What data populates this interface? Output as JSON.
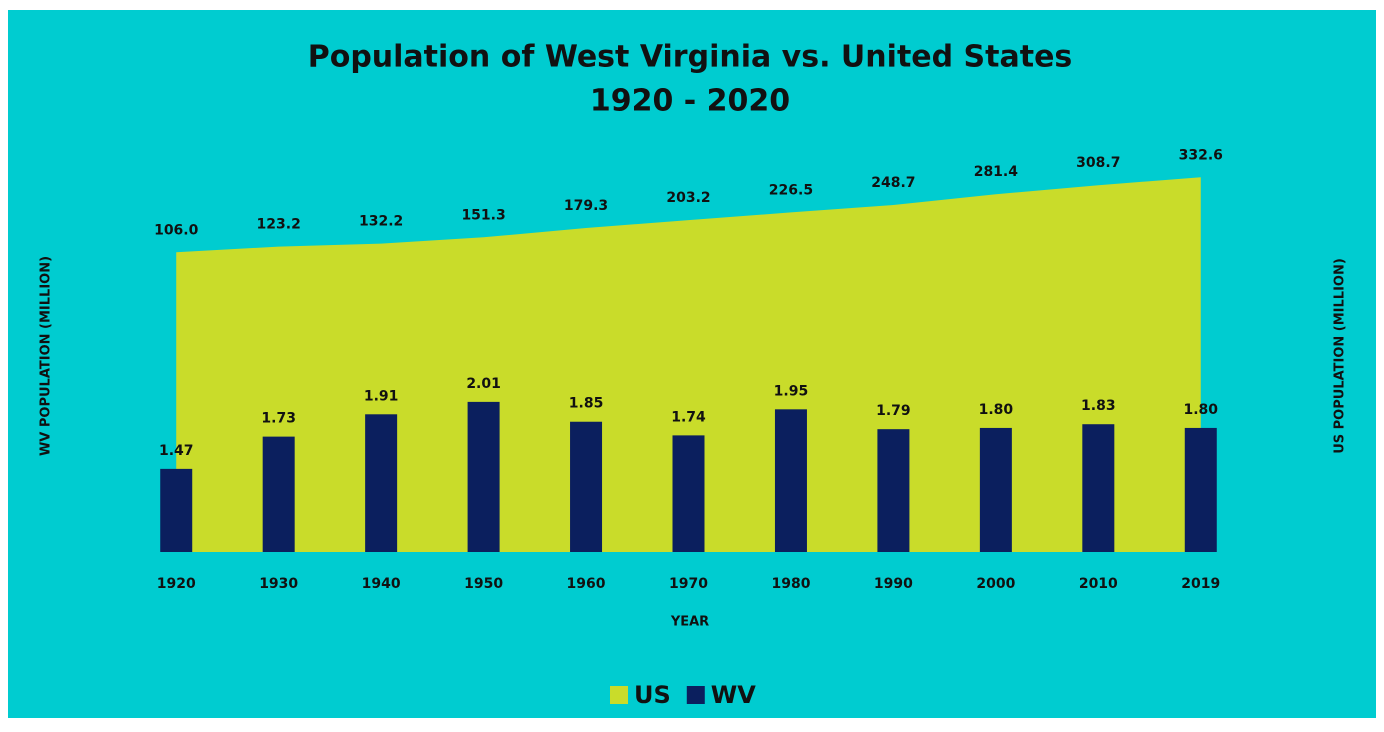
{
  "chart_data": {
    "type": "bar",
    "title": [
      "Population of West Virginia vs. United States",
      "1920 - 2020"
    ],
    "x_label": "YEAR",
    "y_label": "WV POPULATION (MILLION)",
    "y2_label": "US POPULATION (MILLION)",
    "categories": [
      "1920",
      "1930",
      "1940",
      "1950",
      "1960",
      "1970",
      "1980",
      "1990",
      "2000",
      "2010",
      "2019"
    ],
    "series": [
      {
        "name": "US",
        "type": "area",
        "axis": "y2",
        "color": "#c9dc2a",
        "values": [
          106.0,
          123.2,
          132.2,
          151.3,
          179.3,
          203.2,
          226.5,
          248.7,
          281.4,
          308.7,
          332.6
        ],
        "value_labels": [
          "106.0",
          "123.2",
          "132.2",
          "151.3",
          "179.3",
          "203.2",
          "226.5",
          "248.7",
          "281.4",
          "308.7",
          "332.6"
        ]
      },
      {
        "name": "WV",
        "type": "bar",
        "axis": "y",
        "color": "#0b1f5e",
        "values": [
          1.47,
          1.73,
          1.91,
          2.01,
          1.85,
          1.74,
          1.95,
          1.79,
          1.8,
          1.83,
          1.8
        ],
        "value_labels": [
          "1.47",
          "1.73",
          "1.91",
          "2.01",
          "1.85",
          "1.74",
          "1.95",
          "1.79",
          "1.80",
          "1.83",
          "1.80"
        ]
      }
    ],
    "ylim": [
      0.8,
      4
    ],
    "y2lim": [
      -800,
      400
    ],
    "legend": "bottom"
  }
}
